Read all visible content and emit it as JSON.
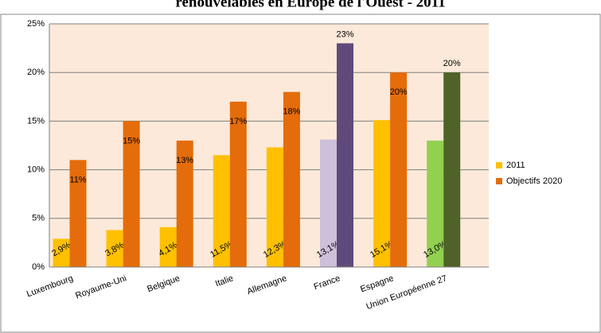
{
  "chart_data": {
    "type": "bar",
    "title": "renouvelables en Europe de l'Ouest - 2011",
    "categories": [
      "Luxembourg",
      "Royaume-Uni",
      "Belgique",
      "Italie",
      "Allemagne",
      "France",
      "Espagne",
      "Union Européenne 27"
    ],
    "series": [
      {
        "name": "2011",
        "color": "#ffc000",
        "colors": [
          "#ffc000",
          "#ffc000",
          "#ffc000",
          "#ffc000",
          "#ffc000",
          "#ccc0da",
          "#ffc000",
          "#92d050"
        ],
        "values": [
          2.9,
          3.8,
          4.1,
          11.5,
          12.3,
          13.1,
          15.1,
          13.0
        ],
        "value_labels": [
          "2,9%",
          "3,8%",
          "4,1%",
          "11,5%",
          "12,3%",
          "13,1%",
          "15,1%",
          "13,0%"
        ]
      },
      {
        "name": "Objectifs 2020",
        "color": "#e46c0a",
        "colors": [
          "#e46c0a",
          "#e46c0a",
          "#e46c0a",
          "#e46c0a",
          "#e46c0a",
          "#604a7b",
          "#e46c0a",
          "#4f6228"
        ],
        "values": [
          11,
          15,
          13,
          17,
          18,
          23,
          20,
          20
        ],
        "value_labels": [
          "11%",
          "15%",
          "13%",
          "17%",
          "18%",
          "23%",
          "20%",
          "20%"
        ]
      }
    ],
    "ylim": [
      0,
      25
    ],
    "yticks": [
      {
        "value": 0,
        "label": "0%"
      },
      {
        "value": 5,
        "label": "5%"
      },
      {
        "value": 10,
        "label": "10%"
      },
      {
        "value": 15,
        "label": "15%"
      },
      {
        "value": 20,
        "label": "20%"
      },
      {
        "value": 25,
        "label": "25%"
      }
    ],
    "grid": true,
    "legend": "right"
  }
}
